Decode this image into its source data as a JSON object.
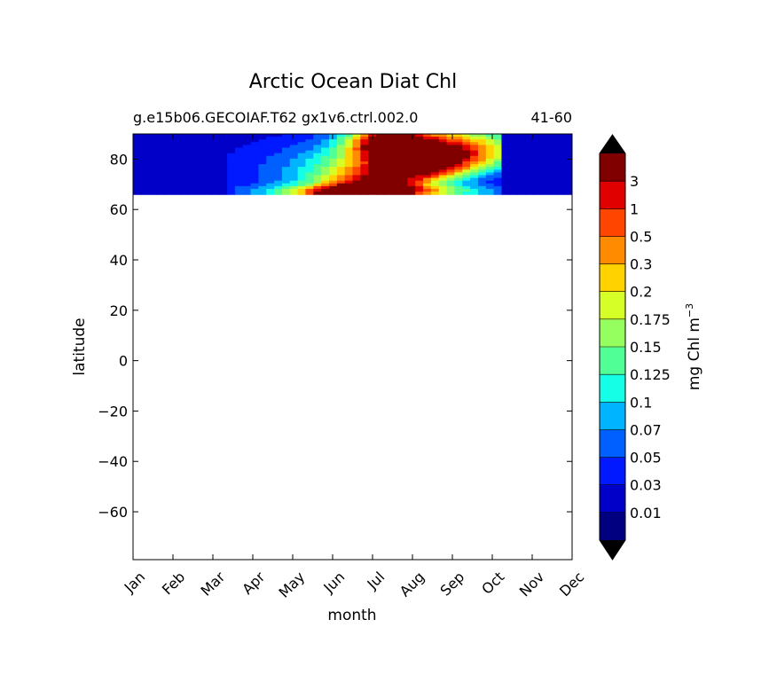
{
  "chart_data": {
    "type": "contour",
    "title": "Arctic Ocean Diat Chl",
    "subtitle_left": "g.e15b06.GECOIAF.T62 gx1v6.ctrl.002.0",
    "subtitle_right": "41-60",
    "xlabel": "month",
    "ylabel": "latitude",
    "x_ticks": [
      "Jan",
      "Feb",
      "Mar",
      "Apr",
      "May",
      "Jun",
      "Jul",
      "Aug",
      "Sep",
      "Oct",
      "Nov",
      "Dec"
    ],
    "y_ticks": [
      80,
      60,
      40,
      20,
      0,
      -20,
      -40,
      -60
    ],
    "y_tick_labels": [
      "80",
      "60",
      "40",
      "20",
      "0",
      "−20",
      "−40",
      "−60"
    ],
    "ylim": [
      -79,
      90
    ],
    "data_lat_range": [
      66,
      90
    ],
    "colorbar": {
      "label": "mg Chl m",
      "label_superscript": "−3",
      "levels": [
        0.01,
        0.03,
        0.05,
        0.07,
        0.1,
        0.125,
        0.15,
        0.175,
        0.2,
        0.3,
        0.5,
        1,
        3
      ],
      "tick_labels": [
        "0.01",
        "0.03",
        "0.05",
        "0.07",
        "0.1",
        "0.125",
        "0.15",
        "0.175",
        "0.2",
        "0.3",
        "0.5",
        "1",
        "3"
      ],
      "colors": [
        "#000080",
        "#0000c8",
        "#0019ff",
        "#0060ff",
        "#00b4ff",
        "#14ffe6",
        "#50ff96",
        "#96ff60",
        "#d6ff28",
        "#ffd200",
        "#ff8c00",
        "#ff4500",
        "#e00000",
        "#800000"
      ],
      "extend_colors": [
        "#000000",
        "#000000"
      ]
    }
  }
}
